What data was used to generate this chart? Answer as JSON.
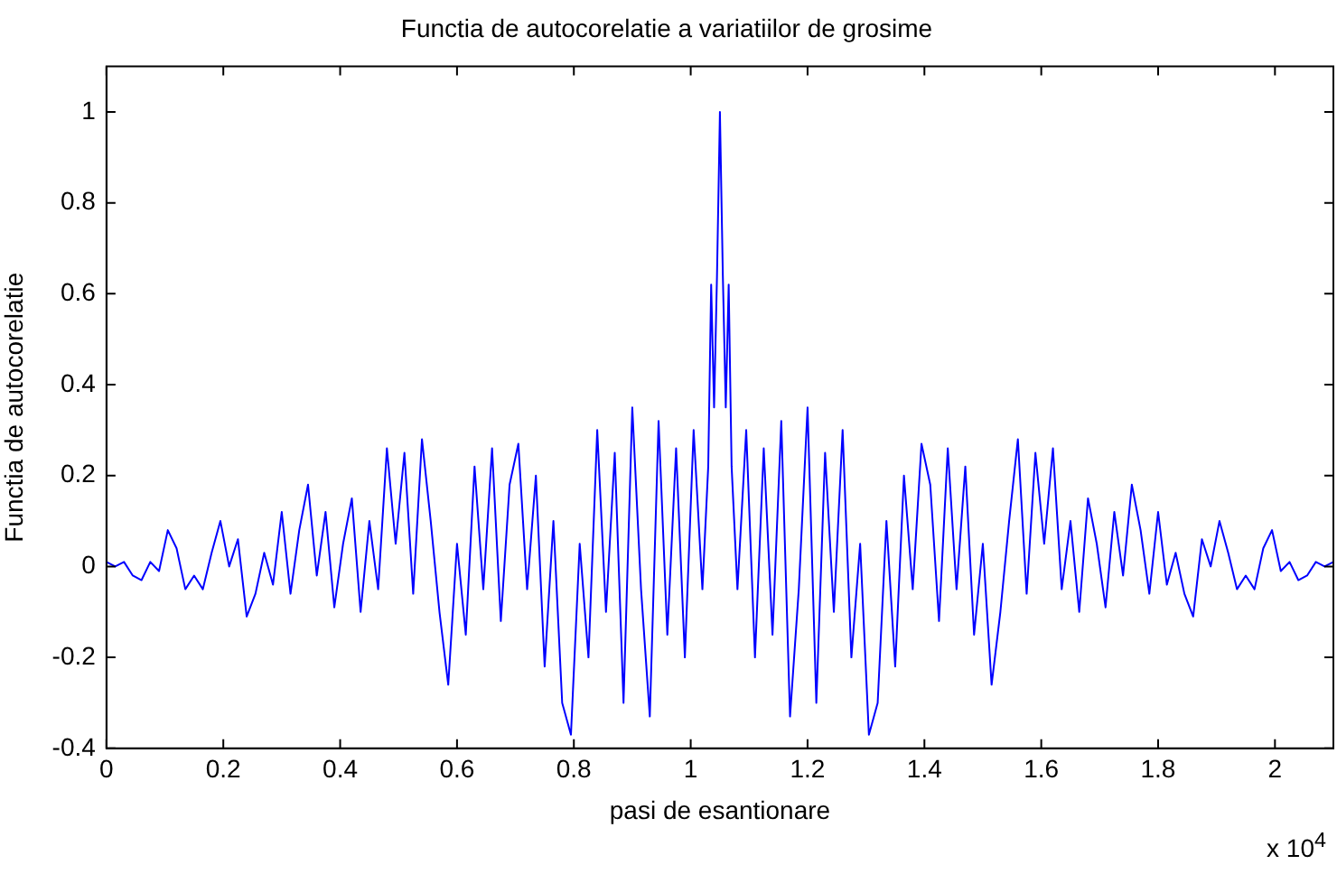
{
  "chart_data": {
    "type": "line",
    "title": "Functia de autocorelatie a variatiilor de grosime",
    "xlabel": "pasi de esantionare",
    "ylabel": "Functia de autocorelatie",
    "annotations": [
      "x 10$^{4}$"
    ],
    "xlim": [
      0,
      2.1
    ],
    "xticks": [
      0,
      0.2,
      0.4,
      0.6,
      0.8,
      1,
      1.2,
      1.4,
      1.6,
      1.8,
      2
    ],
    "ylim": [
      -0.4,
      1.1
    ],
    "yticks": [
      -0.4,
      -0.2,
      0,
      0.2,
      0.4,
      0.6,
      0.8,
      1
    ],
    "grid": false,
    "legend": false,
    "marker": "none",
    "line_style": "solid",
    "series": [
      {
        "color": "#0000ff",
        "x": [
          0,
          0.015,
          0.03,
          0.045,
          0.06,
          0.075,
          0.09,
          0.105,
          0.12,
          0.135,
          0.15,
          0.165,
          0.18,
          0.195,
          0.21,
          0.225,
          0.24,
          0.255,
          0.27,
          0.285,
          0.3,
          0.315,
          0.33,
          0.345,
          0.36,
          0.375,
          0.39,
          0.405,
          0.42,
          0.435,
          0.45,
          0.465,
          0.48,
          0.495,
          0.51,
          0.525,
          0.54,
          0.555,
          0.57,
          0.585,
          0.6,
          0.615,
          0.63,
          0.645,
          0.66,
          0.675,
          0.69,
          0.705,
          0.72,
          0.735,
          0.75,
          0.765,
          0.78,
          0.795,
          0.81,
          0.825,
          0.84,
          0.855,
          0.87,
          0.885,
          0.9,
          0.915,
          0.93,
          0.945,
          0.96,
          0.975,
          0.99,
          1.005,
          1.02,
          1.03,
          1.035,
          1.04,
          1.045,
          1.05,
          1.055,
          1.06,
          1.065,
          1.07,
          1.08,
          1.095,
          1.11,
          1.125,
          1.14,
          1.155,
          1.17,
          1.185,
          1.2,
          1.215,
          1.23,
          1.245,
          1.26,
          1.275,
          1.29,
          1.305,
          1.32,
          1.335,
          1.35,
          1.365,
          1.38,
          1.395,
          1.41,
          1.425,
          1.44,
          1.455,
          1.47,
          1.485,
          1.5,
          1.515,
          1.53,
          1.545,
          1.56,
          1.575,
          1.59,
          1.605,
          1.62,
          1.635,
          1.65,
          1.665,
          1.68,
          1.695,
          1.71,
          1.725,
          1.74,
          1.755,
          1.77,
          1.785,
          1.8,
          1.815,
          1.83,
          1.845,
          1.86,
          1.875,
          1.89,
          1.905,
          1.92,
          1.935,
          1.95,
          1.965,
          1.98,
          1.995,
          2.01,
          2.025,
          2.04,
          2.055,
          2.07,
          2.085,
          2.1
        ],
        "values": [
          0.01,
          0,
          0.01,
          -0.02,
          -0.03,
          0.01,
          -0.01,
          0.08,
          0.04,
          -0.05,
          -0.02,
          -0.05,
          0.03,
          0.1,
          0,
          0.06,
          -0.11,
          -0.06,
          0.03,
          -0.04,
          0.12,
          -0.06,
          0.08,
          0.18,
          -0.02,
          0.12,
          -0.09,
          0.05,
          0.15,
          -0.1,
          0.1,
          -0.05,
          0.26,
          0.05,
          0.25,
          -0.06,
          0.28,
          0.1,
          -0.1,
          -0.26,
          0.05,
          -0.15,
          0.22,
          -0.05,
          0.26,
          -0.12,
          0.18,
          0.27,
          -0.05,
          0.2,
          -0.22,
          0.1,
          -0.3,
          -0.37,
          0.05,
          -0.2,
          0.3,
          -0.1,
          0.25,
          -0.3,
          0.35,
          -0.05,
          -0.33,
          0.32,
          -0.15,
          0.26,
          -0.2,
          0.3,
          -0.05,
          0.22,
          0.62,
          0.35,
          0.64,
          1,
          0.64,
          0.35,
          0.62,
          0.22,
          -0.05,
          0.3,
          -0.2,
          0.26,
          -0.15,
          0.32,
          -0.33,
          -0.05,
          0.35,
          -0.3,
          0.25,
          -0.1,
          0.3,
          -0.2,
          0.05,
          -0.37,
          -0.3,
          0.1,
          -0.22,
          0.2,
          -0.05,
          0.27,
          0.18,
          -0.12,
          0.26,
          -0.05,
          0.22,
          -0.15,
          0.05,
          -0.26,
          -0.1,
          0.1,
          0.28,
          -0.06,
          0.25,
          0.05,
          0.26,
          -0.05,
          0.1,
          -0.1,
          0.15,
          0.05,
          -0.09,
          0.12,
          -0.02,
          0.18,
          0.08,
          -0.06,
          0.12,
          -0.04,
          0.03,
          -0.06,
          -0.11,
          0.06,
          0,
          0.1,
          0.03,
          -0.05,
          -0.02,
          -0.05,
          0.04,
          0.08,
          -0.01,
          0.01,
          -0.03,
          -0.02,
          0.01,
          0,
          0.01
        ]
      }
    ]
  }
}
